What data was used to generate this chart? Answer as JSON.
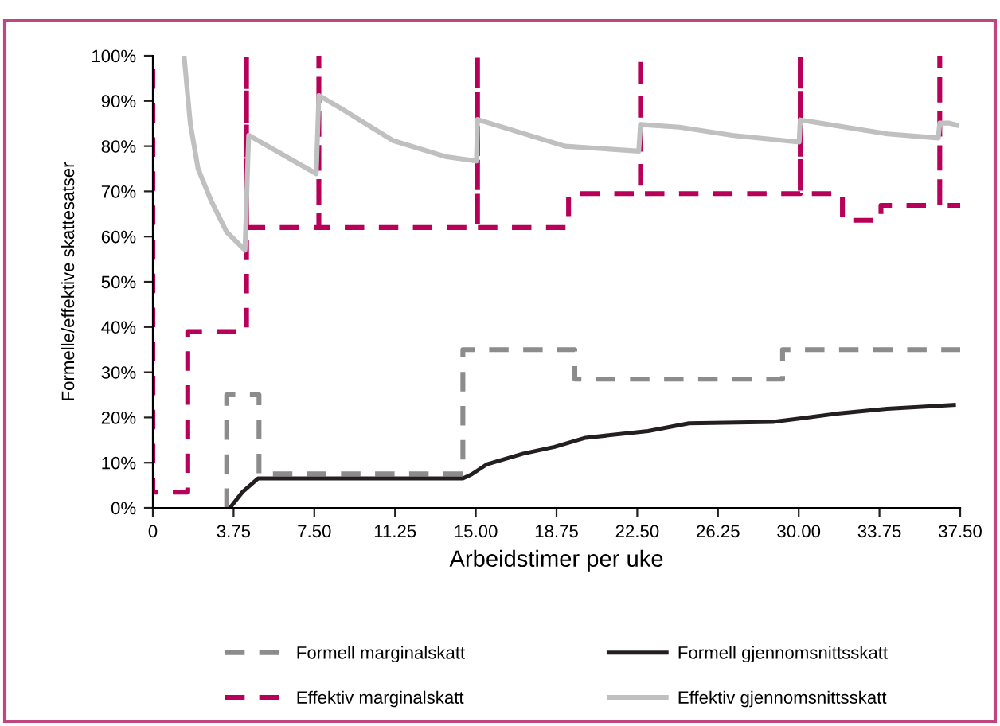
{
  "chart_data": {
    "type": "line",
    "xlabel": "Arbeidstimer per uke",
    "ylabel": "Formelle/effektive skattesatser",
    "xlim": [
      0,
      37.5
    ],
    "ylim": [
      0,
      100
    ],
    "xticks": [
      0,
      {
        "value": 3.75,
        "label": "3.75"
      },
      {
        "value": 7.5,
        "label": "7.50"
      },
      {
        "value": 11.25,
        "label": "11.25"
      },
      {
        "value": 15,
        "label": "15.00"
      },
      {
        "value": 18.75,
        "label": "18.75"
      },
      {
        "value": 22.5,
        "label": "22.50"
      },
      {
        "value": 26.25,
        "label": "26.25"
      },
      {
        "value": 30,
        "label": "30.00"
      },
      {
        "value": 33.75,
        "label": "33.75"
      },
      {
        "value": 37.5,
        "label": "37.50"
      }
    ],
    "yticks": [
      {
        "value": 0,
        "label": "0%"
      },
      {
        "value": 10,
        "label": "10%"
      },
      {
        "value": 20,
        "label": "20%"
      },
      {
        "value": 30,
        "label": "30%"
      },
      {
        "value": 40,
        "label": "40%"
      },
      {
        "value": 50,
        "label": "50%"
      },
      {
        "value": 60,
        "label": "60%"
      },
      {
        "value": 70,
        "label": "70%"
      },
      {
        "value": 80,
        "label": "80%"
      },
      {
        "value": 90,
        "label": "90%"
      },
      {
        "value": 100,
        "label": "100%"
      }
    ],
    "grid": false,
    "legend": "bottom",
    "marker": "none",
    "series": [
      {
        "name": "Formell marginalskatt",
        "color": "#8c8c8c",
        "line_style": "dashed",
        "x": [
          3.43,
          3.43,
          4.93,
          4.93,
          14.4,
          14.4,
          19.6,
          19.6,
          29.25,
          29.25,
          37.5
        ],
        "values": [
          0,
          25,
          25,
          7.5,
          7.5,
          35,
          35,
          28.5,
          28.5,
          35,
          35
        ]
      },
      {
        "name": "Effektiv marginalskatt",
        "color": "#b8005a",
        "line_style": "dashed",
        "x": [
          0,
          0,
          1.62,
          1.62,
          4.35,
          4.35,
          4.35,
          7.71,
          7.71,
          7.71,
          15.08,
          15.08,
          15.08,
          19.31,
          19.31,
          22.65,
          22.65,
          22.65,
          30.07,
          30.07,
          30.07,
          32.03,
          32.03,
          33.82,
          33.82,
          36.55,
          36.55,
          36.55,
          37.5
        ],
        "values": [
          97,
          3.5,
          3.5,
          39,
          39,
          100,
          62,
          62,
          100,
          62,
          62,
          100,
          62,
          62,
          69.5,
          69.5,
          100,
          69.5,
          69.5,
          100,
          69.5,
          69.5,
          63.6,
          63.6,
          66.9,
          66.9,
          100,
          66.9,
          66.9
        ]
      },
      {
        "name": "Formell gjennomsnittsskatt",
        "color": "#231f20",
        "line_style": "solid",
        "x": [
          3.58,
          4.16,
          4.88,
          14.4,
          14.8,
          15.5,
          17.2,
          18.66,
          20.1,
          23.0,
          24.9,
          28.8,
          31.7,
          34.1,
          37.3
        ],
        "values": [
          0,
          3.5,
          6.5,
          6.5,
          7.4,
          9.6,
          12,
          13.5,
          15.5,
          17,
          18.7,
          19,
          20.8,
          21.9,
          22.8
        ]
      },
      {
        "name": "Effektiv gjennomsnittsskatt",
        "color": "#c0c0c0",
        "line_style": "solid",
        "x": [
          1.45,
          1.74,
          2.1,
          2.7,
          3.43,
          4.28,
          4.45,
          7.59,
          7.71,
          8.75,
          11.17,
          13.58,
          15.03,
          15.08,
          19.14,
          22.57,
          22.65,
          24.46,
          26.9,
          30.02,
          30.07,
          34.13,
          36.48,
          36.55,
          37.0,
          37.44
        ],
        "values": [
          100,
          85,
          75,
          68,
          61,
          57,
          82.4,
          73.9,
          91.2,
          88.3,
          81.2,
          77.7,
          76.7,
          85.9,
          80,
          78.9,
          84.8,
          84.2,
          82.4,
          80.9,
          85.8,
          82.7,
          81.8,
          85.1,
          85.1,
          84.5
        ]
      }
    ]
  }
}
